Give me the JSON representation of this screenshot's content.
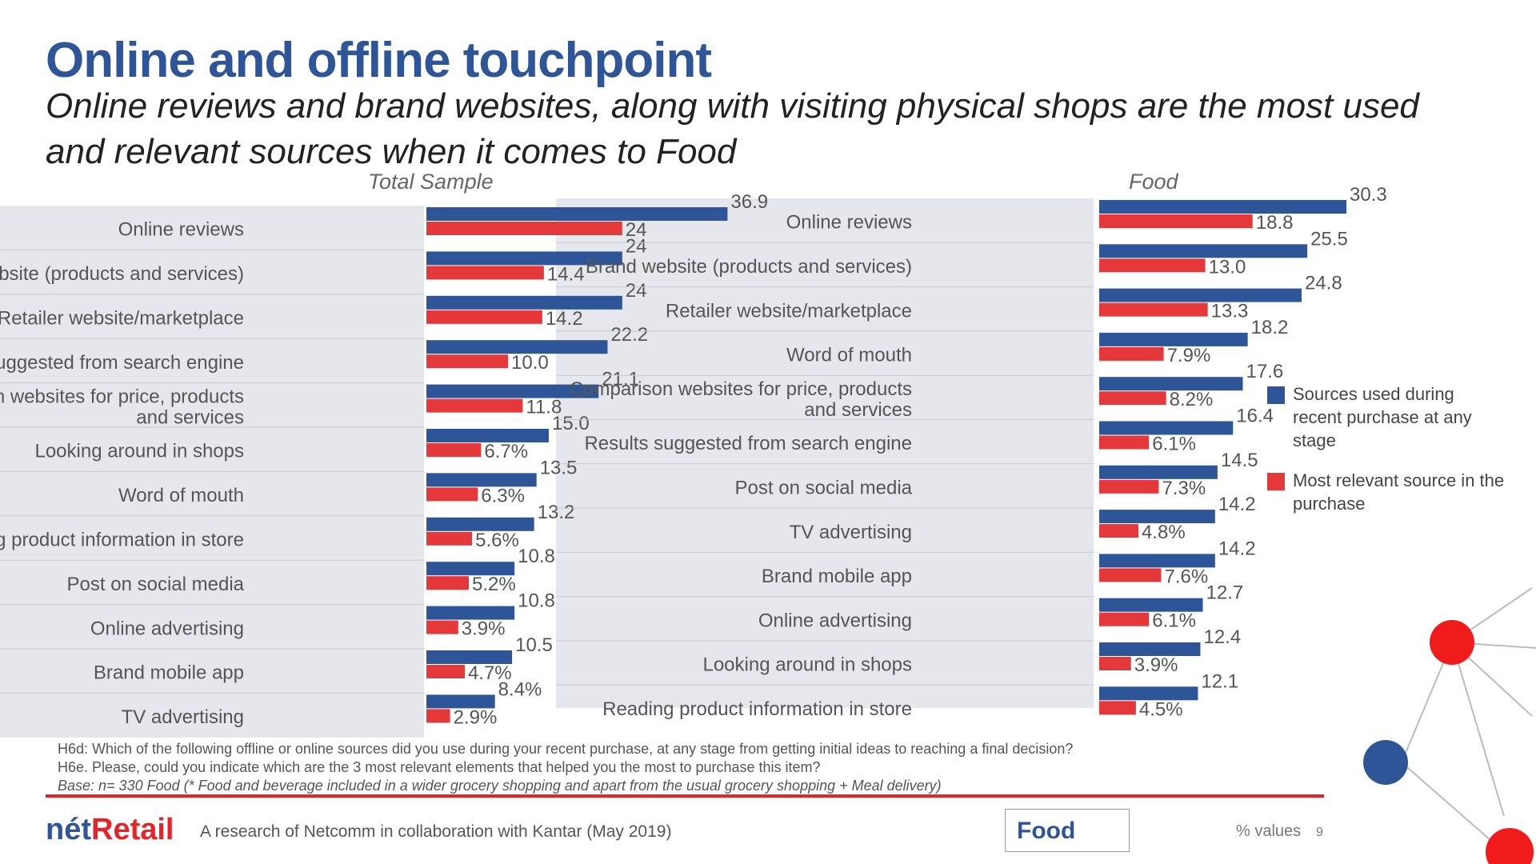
{
  "header": {
    "title": "Online and offline touchpoint",
    "subtitle": "Online reviews and brand websites, along with visiting physical shops are the most used and relevant sources when it comes to Food"
  },
  "colors": {
    "used": "#2E5597",
    "relevant": "#E5383A",
    "title": "#2E5597",
    "accent_red": "#E5242A"
  },
  "legend": {
    "used": "Sources used during recent purchase at any stage",
    "relevant": "Most relevant source in the purchase"
  },
  "chart_data": [
    {
      "type": "bar",
      "orientation": "horizontal",
      "title": "Total Sample",
      "categories": [
        "Online reviews",
        "Brand website (products and services)",
        "Retailer website/marketplace",
        "Results suggested from search engine",
        "Comparison websites for price, products and services",
        "Looking around in shops",
        "Word of mouth",
        "Reading product information in store",
        "Post on social media",
        "Online advertising",
        "Brand mobile app",
        "TV advertising"
      ],
      "series": [
        {
          "name": "Sources used during recent purchase at any stage",
          "values": [
            36.9,
            24.0,
            24.0,
            22.2,
            21.1,
            15.0,
            13.5,
            13.2,
            10.8,
            10.8,
            10.5,
            8.4
          ]
        },
        {
          "name": "Most relevant source in the purchase",
          "values": [
            24.0,
            14.4,
            14.2,
            10.0,
            11.8,
            6.7,
            6.3,
            5.6,
            5.2,
            3.9,
            4.7,
            2.9
          ]
        }
      ],
      "value_labels": {
        "used": [
          "36.9",
          "24",
          "24",
          "22.2",
          "21.1",
          "15.0",
          "13.5",
          "13.2",
          "10.8",
          "10.8",
          "10.5",
          "8.4%"
        ],
        "relevant": [
          "24",
          "14.4",
          "14.2",
          "10.0",
          "11.8",
          "6.7%",
          "6.3%",
          "5.6%",
          "5.2%",
          "3.9%",
          "4.7%",
          "2.9%"
        ]
      },
      "xlim": [
        0,
        40
      ]
    },
    {
      "type": "bar",
      "orientation": "horizontal",
      "title": "Food",
      "categories": [
        "Online reviews",
        "Brand website (products and services)",
        "Retailer website/marketplace",
        "Word of mouth",
        "Comparison websites for price, products and services",
        "Results suggested from search engine",
        "Post on social media",
        "TV advertising",
        "Brand mobile app",
        "Online advertising",
        "Looking around in shops",
        "Reading product information in store"
      ],
      "series": [
        {
          "name": "Sources used during recent purchase at any stage",
          "values": [
            30.3,
            25.5,
            24.8,
            18.2,
            17.6,
            16.4,
            14.5,
            14.2,
            14.2,
            12.7,
            12.4,
            12.1
          ]
        },
        {
          "name": "Most relevant source in the purchase",
          "values": [
            18.8,
            13.0,
            13.3,
            7.9,
            8.2,
            6.1,
            7.3,
            4.8,
            7.6,
            6.1,
            3.9,
            4.5
          ]
        }
      ],
      "value_labels": {
        "used": [
          "30.3",
          "25.5",
          "24.8",
          "18.2",
          "17.6",
          "16.4",
          "14.5",
          "14.2",
          "14.2",
          "12.7",
          "12.4",
          "12.1"
        ],
        "relevant": [
          "18.8",
          "13.0",
          "13.3",
          "7.9%",
          "8.2%",
          "6.1%",
          "7.3%",
          "4.8%",
          "7.6%",
          "6.1%",
          "3.9%",
          "4.5%"
        ]
      },
      "xlim": [
        0,
        40
      ]
    }
  ],
  "footnote": {
    "line1": "H6d: Which of the following offline or online sources did you use during your recent purchase, at any stage from getting initial ideas to reaching a final decision?",
    "line2": "H6e. Please, could you indicate which are the 3 most relevant elements that helped you the most to purchase this item?",
    "line3": "Base: n= 330 Food (* Food and beverage included in a wider grocery shopping and apart from the usual grocery shopping + Meal delivery)"
  },
  "footer": {
    "brand_prefix": "nét",
    "brand_suffix": "Retail",
    "research": "A research of Netcomm in collaboration with Kantar (May 2019)",
    "section": "Food",
    "units": "% values",
    "page": "9"
  }
}
